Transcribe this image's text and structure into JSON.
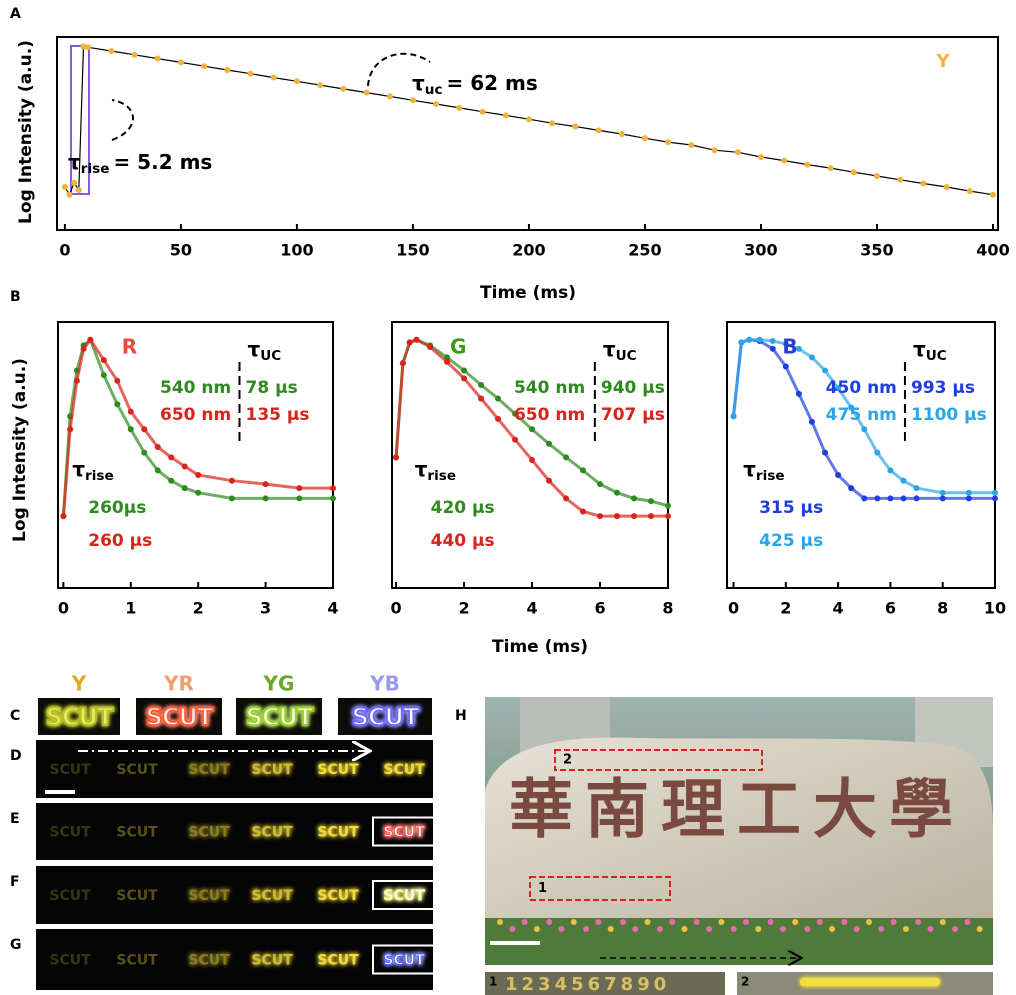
{
  "chart_data": [
    {
      "type": "scatter",
      "panel_label": "A",
      "xlabel": "Time (ms)",
      "ylabel": "Log Intensity (a.u.)",
      "log_y": true,
      "xlim": [
        -3.4,
        400
      ],
      "xticks": [
        0,
        50,
        100,
        150,
        200,
        250,
        300,
        350,
        400
      ],
      "ylim": [
        0.4,
        1500
      ],
      "x": [
        0,
        2,
        4,
        6,
        8,
        10,
        20,
        30,
        40,
        50,
        60,
        70,
        80,
        90,
        100,
        110,
        120,
        130,
        140,
        150,
        160,
        170,
        180,
        190,
        200,
        210,
        220,
        230,
        240,
        250,
        260,
        270,
        280,
        290,
        300,
        310,
        320,
        330,
        340,
        350,
        360,
        370,
        380,
        390,
        400
      ],
      "series": [
        {
          "name": "Y",
          "color": "#f0b23a",
          "line_color": "#000000",
          "values": [
            2.5,
            1.8,
            3,
            2.2,
            1000,
            968,
            824,
            701,
            597,
            508,
            432,
            368,
            313,
            266,
            227,
            193,
            164,
            140,
            119,
            101,
            86,
            73,
            62,
            53,
            45,
            38,
            33,
            28,
            24,
            20,
            17,
            15,
            12,
            11,
            9,
            7.7,
            6.5,
            5.6,
            4.7,
            4.0,
            3.4,
            2.9,
            2.5,
            2.1,
            1.8
          ]
        }
      ],
      "annotations": {
        "rise": {
          "symbol": "τ",
          "subscript": "rise",
          "text": "= 5.2 ms"
        },
        "uc": {
          "symbol": "τ",
          "subscript": "uc",
          "text": "= 62 ms"
        }
      }
    },
    {
      "type": "scatter",
      "title": "R",
      "title_color": "#e84a3c",
      "ylabel": "Log Intensity (a.u.)",
      "log_y": true,
      "xlim": [
        -0.08,
        4
      ],
      "xticks": [
        0,
        1,
        2,
        3,
        4
      ],
      "ylim": [
        6e-05,
        2
      ],
      "x": [
        0,
        0.1,
        0.2,
        0.3,
        0.4,
        0.6,
        0.8,
        1.0,
        1.2,
        1.4,
        1.6,
        1.8,
        2.0,
        2.5,
        3,
        3.5,
        4
      ],
      "uc_header": {
        "symbol": "τ",
        "subscript": "UC"
      },
      "rise_header": {
        "symbol": "τ",
        "subscript": "rise"
      },
      "series": [
        {
          "name": "540 nm",
          "color": "#2e8b1f",
          "tau_uc": "78 µs",
          "tau_rise": "260µs",
          "values": [
            0.001,
            0.05,
            0.3,
            0.8,
            1,
            0.25,
            0.08,
            0.03,
            0.012,
            0.006,
            0.004,
            0.003,
            0.0025,
            0.002,
            0.002,
            0.002,
            0.002
          ]
        },
        {
          "name": "650 nm",
          "color": "#d8241c",
          "tau_uc": "135 µs",
          "tau_rise": "260 µs",
          "values": [
            0.001,
            0.03,
            0.2,
            0.7,
            1,
            0.45,
            0.2,
            0.06,
            0.03,
            0.015,
            0.01,
            0.007,
            0.005,
            0.004,
            0.0035,
            0.003,
            0.003
          ]
        }
      ]
    },
    {
      "type": "scatter",
      "panel_label": "B",
      "title": "G",
      "title_color": "#3a9a1a",
      "xlabel": "Time (ms)",
      "log_y": true,
      "xlim": [
        -0.12,
        8
      ],
      "xticks": [
        0,
        2,
        4,
        6,
        8
      ],
      "ylim": [
        6e-05,
        2
      ],
      "x": [
        0,
        0.2,
        0.4,
        0.6,
        1,
        1.5,
        2,
        2.5,
        3,
        3.5,
        4,
        4.5,
        5,
        5.5,
        6,
        6.5,
        7,
        7.5,
        8
      ],
      "uc_header": {
        "symbol": "τ",
        "subscript": "UC"
      },
      "rise_header": {
        "symbol": "τ",
        "subscript": "rise"
      },
      "series": [
        {
          "name": "540 nm",
          "color": "#2e8b1f",
          "tau_uc": "940 µs",
          "tau_rise": "420 µs",
          "values": [
            0.01,
            0.4,
            0.9,
            1,
            0.8,
            0.5,
            0.3,
            0.17,
            0.1,
            0.055,
            0.03,
            0.017,
            0.01,
            0.006,
            0.0035,
            0.0025,
            0.002,
            0.0018,
            0.0015
          ]
        },
        {
          "name": "650 nm",
          "color": "#d8241c",
          "tau_uc": "707 µs",
          "tau_rise": "440 µs",
          "values": [
            0.01,
            0.4,
            0.9,
            1,
            0.75,
            0.42,
            0.22,
            0.1,
            0.045,
            0.02,
            0.009,
            0.004,
            0.002,
            0.0012,
            0.001,
            0.001,
            0.001,
            0.001,
            0.001
          ]
        }
      ]
    },
    {
      "type": "scatter",
      "title": "B",
      "title_color": "#2a3fd0",
      "log_y": true,
      "xlim": [
        -0.25,
        10
      ],
      "xticks": [
        0,
        2,
        4,
        6,
        8,
        10
      ],
      "ylim": [
        6e-05,
        2
      ],
      "x": [
        0,
        0.3,
        0.6,
        1,
        1.5,
        2,
        2.5,
        3,
        3.5,
        4,
        4.5,
        5,
        5.5,
        6,
        6.5,
        7,
        8,
        9,
        10
      ],
      "uc_header": {
        "symbol": "τ",
        "subscript": "UC"
      },
      "rise_header": {
        "symbol": "τ",
        "subscript": "rise"
      },
      "series": [
        {
          "name": "450 nm",
          "color": "#1f3ee0",
          "tau_uc": "993 µs",
          "tau_rise": "315 µs",
          "values": [
            0.05,
            0.9,
            1,
            0.95,
            0.7,
            0.35,
            0.12,
            0.04,
            0.012,
            0.005,
            0.003,
            0.002,
            0.002,
            0.002,
            0.002,
            0.002,
            0.002,
            0.002,
            0.002
          ]
        },
        {
          "name": "475 nm",
          "color": "#2aa6e8",
          "tau_uc": "1100 µs",
          "tau_rise": "425 µs",
          "values": [
            0.05,
            0.9,
            1,
            1,
            0.95,
            0.85,
            0.7,
            0.5,
            0.3,
            0.15,
            0.07,
            0.03,
            0.012,
            0.006,
            0.004,
            0.003,
            0.0025,
            0.0025,
            0.0025
          ]
        }
      ]
    }
  ],
  "panels": {
    "C": {
      "label": "C",
      "tiles": [
        {
          "label": "Y",
          "label_color": "#e8a82a",
          "text": "SCUT",
          "color": "#e8ec6a",
          "glow": "#b8c020"
        },
        {
          "label": "YR",
          "label_color": "#f0a070",
          "text": "SCUT",
          "color": "#fff4ee",
          "glow": "#ff5a30"
        },
        {
          "label": "YG",
          "label_color": "#6aa82a",
          "text": "SCUT",
          "color": "#f6ffe0",
          "glow": "#9ad02a"
        },
        {
          "label": "YB",
          "label_color": "#9a9ae6",
          "text": "SCUT",
          "color": "#ffffff",
          "glow": "#6a6aff"
        }
      ]
    },
    "D": {
      "label": "D",
      "tiles": [
        "SCUT",
        "SCUT",
        "SCUT",
        "SCUT",
        "SCUT",
        "SCUT"
      ]
    },
    "E": {
      "label": "E",
      "tiles": [
        "SCUT",
        "SCUT",
        "SCUT",
        "SCUT",
        "SCUT",
        "SCUT"
      ],
      "highlight_color": "#ff4a3a"
    },
    "F": {
      "label": "F",
      "tiles": [
        "SCUT",
        "SCUT",
        "SCUT",
        "SCUT",
        "SCUT",
        "SCUT"
      ],
      "highlight_color": "#e8f05a"
    },
    "G": {
      "label": "G",
      "tiles": [
        "SCUT",
        "SCUT",
        "SCUT",
        "SCUT",
        "SCUT",
        "SCUT"
      ],
      "highlight_color": "#4a5aff"
    },
    "H": {
      "label": "H",
      "inscription": "華南理工大學",
      "boxes": [
        "2",
        "1"
      ],
      "strips": [
        {
          "label": "1",
          "text": "1234567890"
        },
        {
          "label": "2"
        }
      ]
    }
  }
}
